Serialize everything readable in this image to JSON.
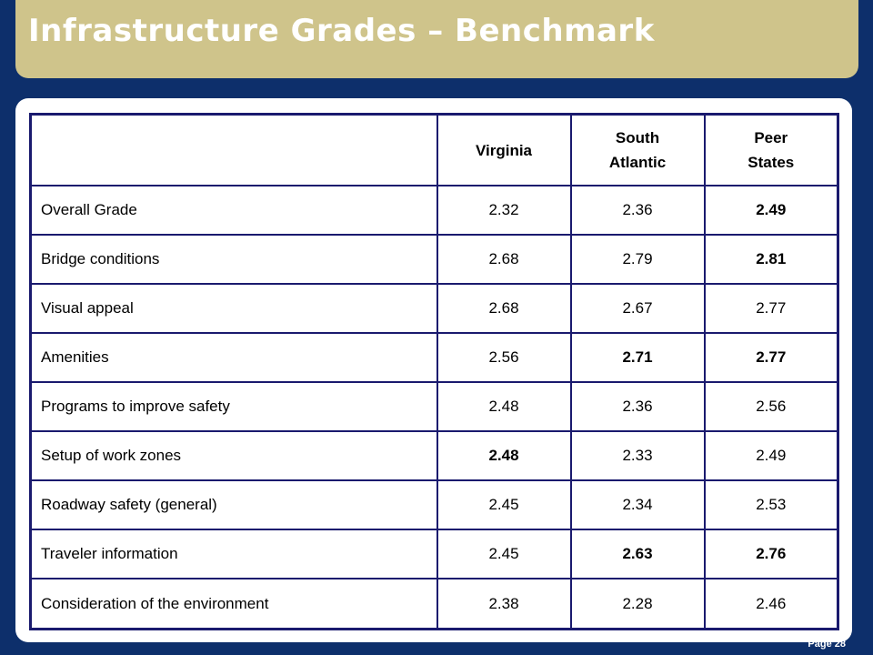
{
  "title": "Infrastructure Grades – Benchmark",
  "page_label": "Page 28",
  "table": {
    "headers": [
      "",
      "Virginia",
      "South Atlantic",
      "Peer States"
    ],
    "rows": [
      {
        "label": "Overall Grade",
        "values": [
          "2.32",
          "2.36",
          "2.49"
        ],
        "bold": [
          false,
          false,
          true
        ]
      },
      {
        "label": "Bridge conditions",
        "values": [
          "2.68",
          "2.79",
          "2.81"
        ],
        "bold": [
          false,
          false,
          true
        ]
      },
      {
        "label": "Visual appeal",
        "values": [
          "2.68",
          "2.67",
          "2.77"
        ],
        "bold": [
          false,
          false,
          false
        ]
      },
      {
        "label": "Amenities",
        "values": [
          "2.56",
          "2.71",
          "2.77"
        ],
        "bold": [
          false,
          true,
          true
        ]
      },
      {
        "label": "Programs to improve safety",
        "values": [
          "2.48",
          "2.36",
          "2.56"
        ],
        "bold": [
          false,
          false,
          false
        ]
      },
      {
        "label": "Setup of work zones",
        "values": [
          "2.48",
          "2.33",
          "2.49"
        ],
        "bold": [
          true,
          false,
          false
        ]
      },
      {
        "label": "Roadway safety (general)",
        "values": [
          "2.45",
          "2.34",
          "2.53"
        ],
        "bold": [
          false,
          false,
          false
        ]
      },
      {
        "label": "Traveler information",
        "values": [
          "2.45",
          "2.63",
          "2.76"
        ],
        "bold": [
          false,
          true,
          true
        ]
      },
      {
        "label": "Consideration of the environment",
        "values": [
          "2.38",
          "2.28",
          "2.46"
        ],
        "bold": [
          false,
          false,
          false
        ]
      }
    ]
  }
}
